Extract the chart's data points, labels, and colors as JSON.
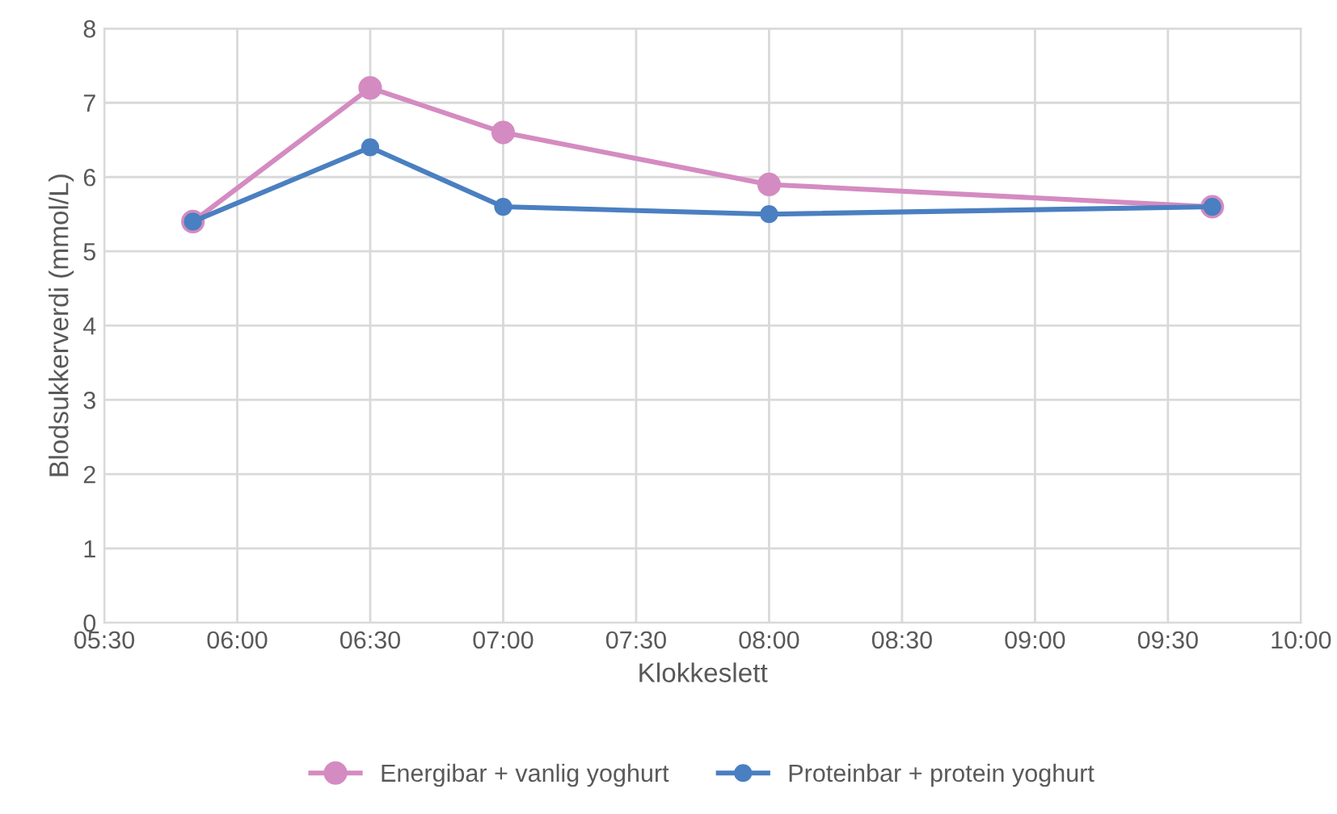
{
  "chart_data": {
    "type": "line",
    "xlabel": "Klokkeslett",
    "ylabel": "Blodsukkerverdi (mmol/L)",
    "series": [
      {
        "name": "Energibar + vanlig yoghurt",
        "color": "#d48bc1",
        "x": [
          5.8333,
          6.5,
          7.0,
          8.0,
          9.6667
        ],
        "values": [
          5.4,
          7.2,
          6.6,
          5.9,
          5.6
        ]
      },
      {
        "name": "Proteinbar + protein yoghurt",
        "color": "#4a7fc1",
        "x": [
          5.8333,
          6.5,
          7.0,
          8.0,
          9.6667
        ],
        "values": [
          5.4,
          6.4,
          5.6,
          5.5,
          5.6
        ]
      }
    ],
    "xlim": [
      5.5,
      10
    ],
    "xticks": [
      {
        "value": 5.5,
        "label": "05:30"
      },
      {
        "value": 6,
        "label": "06:00"
      },
      {
        "value": 6.5,
        "label": "06:30"
      },
      {
        "value": 7,
        "label": "07:00"
      },
      {
        "value": 7.5,
        "label": "07:30"
      },
      {
        "value": 8,
        "label": "08:00"
      },
      {
        "value": 8.5,
        "label": "08:30"
      },
      {
        "value": 9,
        "label": "09:00"
      },
      {
        "value": 9.5,
        "label": "09:30"
      },
      {
        "value": 10,
        "label": "10:00"
      }
    ],
    "ylim": [
      0,
      8
    ],
    "yticks": [
      0,
      1,
      2,
      3,
      4,
      5,
      6,
      7,
      8
    ],
    "grid": true,
    "legend": "bottom",
    "marker": "circle",
    "line_style": "solid"
  }
}
